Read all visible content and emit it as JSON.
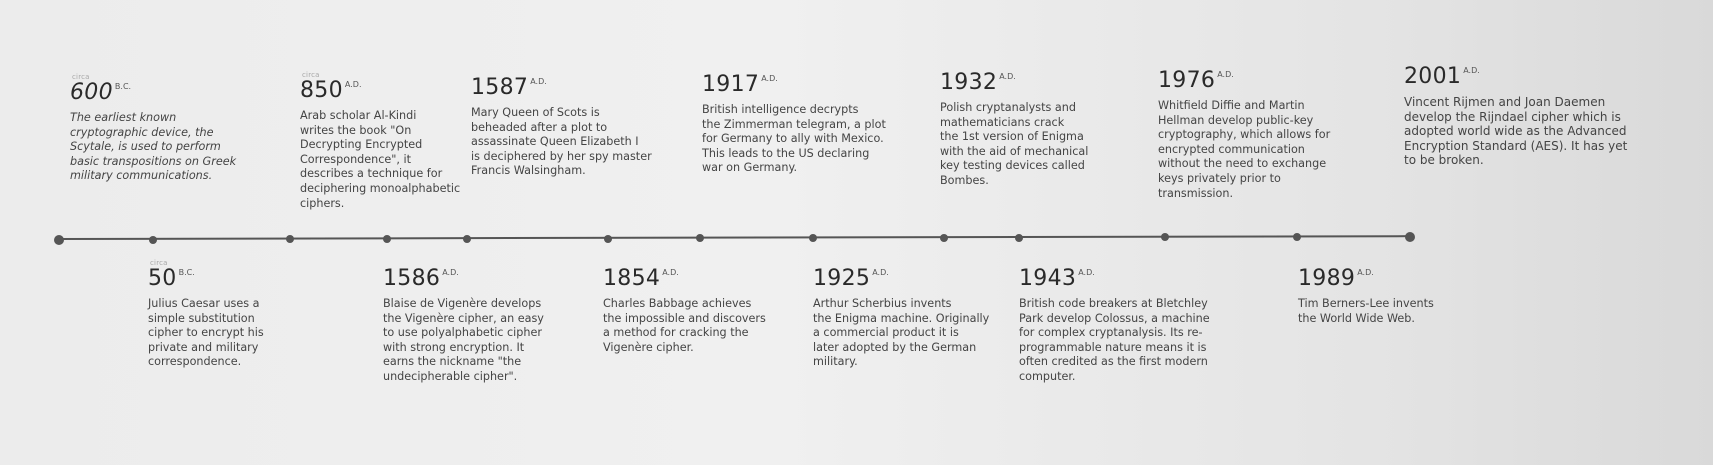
{
  "timeline": {
    "dots": [
      1,
      2,
      3,
      4,
      5,
      6,
      7,
      8,
      9,
      10,
      11,
      12,
      13,
      14,
      15
    ],
    "events": [
      {
        "circa": "circa",
        "year": "600",
        "era": "B.C.",
        "description": "The earliest known\ncryptographic device, the\nScytale, is used to perform\nbasic transpositions on Greek\nmilitary communications."
      },
      {
        "circa": "circa",
        "year": "50",
        "era": "B.C.",
        "description": "Julius Caesar uses a\nsimple substitution\ncipher to encrypt his\nprivate and military\ncorrespondence."
      },
      {
        "circa": "circa",
        "year": "850",
        "era": "A.D.",
        "description": "Arab scholar Al-Kindi\nwrites the book \"On\nDecrypting Encrypted\nCorrespondence\", it\ndescribes a technique for\ndeciphering monoalphabetic\nciphers."
      },
      {
        "circa": "",
        "year": "1586",
        "era": "A.D.",
        "description": "Blaise de Vigenère develops\nthe Vigenère cipher, an easy\nto use polyalphabetic cipher\nwith strong encryption. It\nearns the nickname \"the\nundecipherable cipher\"."
      },
      {
        "circa": "",
        "year": "1587",
        "era": "A.D.",
        "description": "Mary Queen of Scots is\nbeheaded after a plot to\nassassinate Queen Elizabeth I\nis deciphered by her spy master\nFrancis Walsingham."
      },
      {
        "circa": "",
        "year": "1854",
        "era": "A.D.",
        "description": "Charles Babbage achieves\nthe impossible and discovers\na method for cracking the\nVigenère cipher."
      },
      {
        "circa": "",
        "year": "1917",
        "era": "A.D.",
        "description": "British intelligence decrypts\nthe Zimmerman telegram, a plot\nfor Germany to ally with Mexico.\nThis leads to the US declaring\nwar on Germany."
      },
      {
        "circa": "",
        "year": "1925",
        "era": "A.D.",
        "description": "Arthur Scherbius invents\nthe Enigma machine. Originally\na commercial product it is\nlater adopted by the German\nmilitary."
      },
      {
        "circa": "",
        "year": "1932",
        "era": "A.D.",
        "description": "Polish cryptanalysts and\nmathematicians crack\nthe 1st version of Enigma\nwith the aid of mechanical\nkey testing devices called\nBombes."
      },
      {
        "circa": "",
        "year": "1943",
        "era": "A.D.",
        "description": "British code breakers at Bletchley\nPark develop Colossus, a machine\nfor complex cryptanalysis. Its re-\nprogrammable nature means it is\noften credited as the first modern\ncomputer."
      },
      {
        "circa": "",
        "year": "1976",
        "era": "A.D.",
        "description": "Whitfield Diffie and Martin\nHellman develop public-key\ncryptography, which allows for\nencrypted communication\nwithout the need to exchange\nkeys privately prior to\ntransmission."
      },
      {
        "circa": "",
        "year": "1989",
        "era": "A.D.",
        "description": "Tim Berners-Lee invents\nthe World Wide Web."
      },
      {
        "circa": "",
        "year": "2001",
        "era": "A.D.",
        "description": "Vincent Rijmen and Joan Daemen\ndevelop the Rijndael cipher which is\nadopted world wide as the Advanced\nEncryption Standard (AES). It has yet\nto be broken."
      }
    ]
  }
}
